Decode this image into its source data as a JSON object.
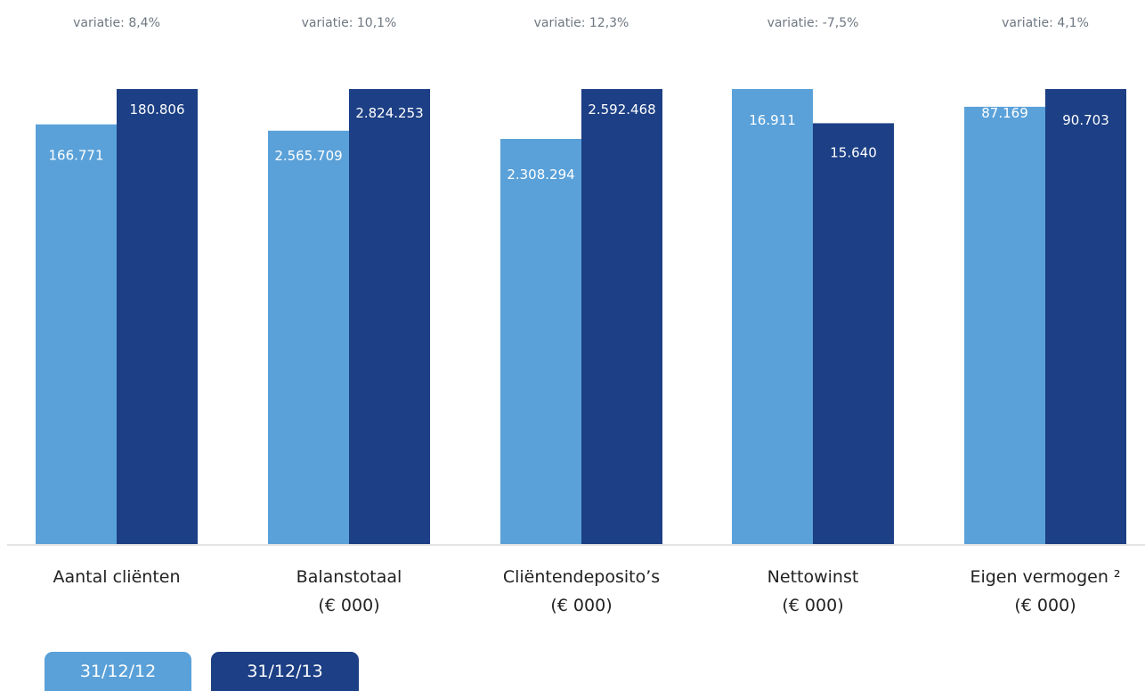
{
  "chart_data": {
    "type": "bar",
    "categories": [
      [
        "Aantal cliënten"
      ],
      [
        "Balanstotaal",
        "(€ 000)"
      ],
      [
        "Cliëntendeposito’s",
        "(€ 000)"
      ],
      [
        "Nettowinst",
        "(€ 000)"
      ],
      [
        "Eigen vermogen ²",
        "(€ 000)"
      ]
    ],
    "variations": [
      "variatie: 8,4%",
      "variatie: 10,1%",
      "variatie: 12,3%",
      "variatie: -7,5%",
      "variatie: 4,1%"
    ],
    "series": [
      {
        "name": "31/12/12",
        "color": "#5aa1d9",
        "values": [
          166771,
          2565709,
          2308294,
          16911,
          87169
        ],
        "labels": [
          "166.771",
          "2.565.709",
          "2.308.294",
          "16.911",
          "87.169"
        ]
      },
      {
        "name": "31/12/13",
        "color": "#1c3f85",
        "values": [
          180806,
          2824253,
          2592468,
          15640,
          90703
        ],
        "labels": [
          "180.806",
          "2.824.253",
          "2.592.468",
          "15.640",
          "90.703"
        ]
      }
    ],
    "grid": false,
    "legend_position": "bottom-left"
  }
}
